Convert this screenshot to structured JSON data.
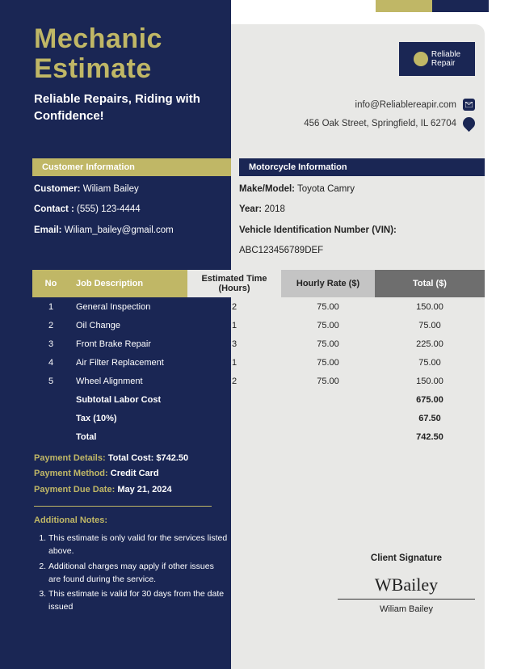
{
  "colors": {
    "navy": "#1a2654",
    "gold": "#c0b766",
    "lightgrey": "#e8e8e6"
  },
  "document": {
    "title_line1": "Mechanic",
    "title_line2": "Estimate",
    "tagline": "Reliable Repairs, Riding with Confidence!"
  },
  "company": {
    "logo_name": "Reliable Repair",
    "email": "info@Reliablereapir.com",
    "address": "456 Oak Street, Springfield, IL 62704"
  },
  "customer_section": {
    "heading": "Customer Information",
    "customer_label": "Customer:",
    "customer_value": "Wiliam Bailey",
    "contact_label": "Contact :",
    "contact_value": "(555) 123-4444",
    "email_label": "Email:",
    "email_value": "Wiliam_bailey@gmail.com"
  },
  "vehicle_section": {
    "heading": "Motorcycle Information",
    "make_label": "Make/Model:",
    "make_value": "Toyota Camry",
    "year_label": "Year:",
    "year_value": "2018",
    "vin_label": "Vehicle Identification Number (VIN):",
    "vin_value": "ABC123456789DEF"
  },
  "table": {
    "headers": {
      "no": "No",
      "desc": "Job Description",
      "time": "Estimated Time (Hours)",
      "rate": "Hourly Rate ($)",
      "total": "Total ($)"
    },
    "rows": [
      {
        "no": "1",
        "desc": "General Inspection",
        "time": "2",
        "rate": "75.00",
        "total": "150.00"
      },
      {
        "no": "2",
        "desc": "Oil Change",
        "time": "1",
        "rate": "75.00",
        "total": "75.00"
      },
      {
        "no": "3",
        "desc": "Front Brake Repair",
        "time": "3",
        "rate": "75.00",
        "total": "225.00"
      },
      {
        "no": "4",
        "desc": "Air Filter Replacement",
        "time": "1",
        "rate": "75.00",
        "total": "75.00"
      },
      {
        "no": "5",
        "desc": "Wheel Alignment",
        "time": "2",
        "rate": "75.00",
        "total": "150.00"
      }
    ],
    "summary": [
      {
        "label": "Subtotal Labor Cost",
        "value": "675.00"
      },
      {
        "label": "Tax (10%)",
        "value": "67.50"
      },
      {
        "label": "Total",
        "value": "742.50"
      }
    ]
  },
  "payment": {
    "details_label": "Payment Details:",
    "details_value": "Total Cost: $742.50",
    "method_label": "Payment Method:",
    "method_value": "Credit Card",
    "due_label": "Payment Due Date:",
    "due_value": "May 21, 2024"
  },
  "notes": {
    "heading": "Additional Notes:",
    "items": [
      "This estimate is only valid for the services listed above.",
      "Additional charges may apply if other issues are found during the service.",
      "This estimate is valid for 30 days from the date issued"
    ]
  },
  "signature": {
    "title": "Client Signature",
    "name": "Wiliam Bailey"
  }
}
